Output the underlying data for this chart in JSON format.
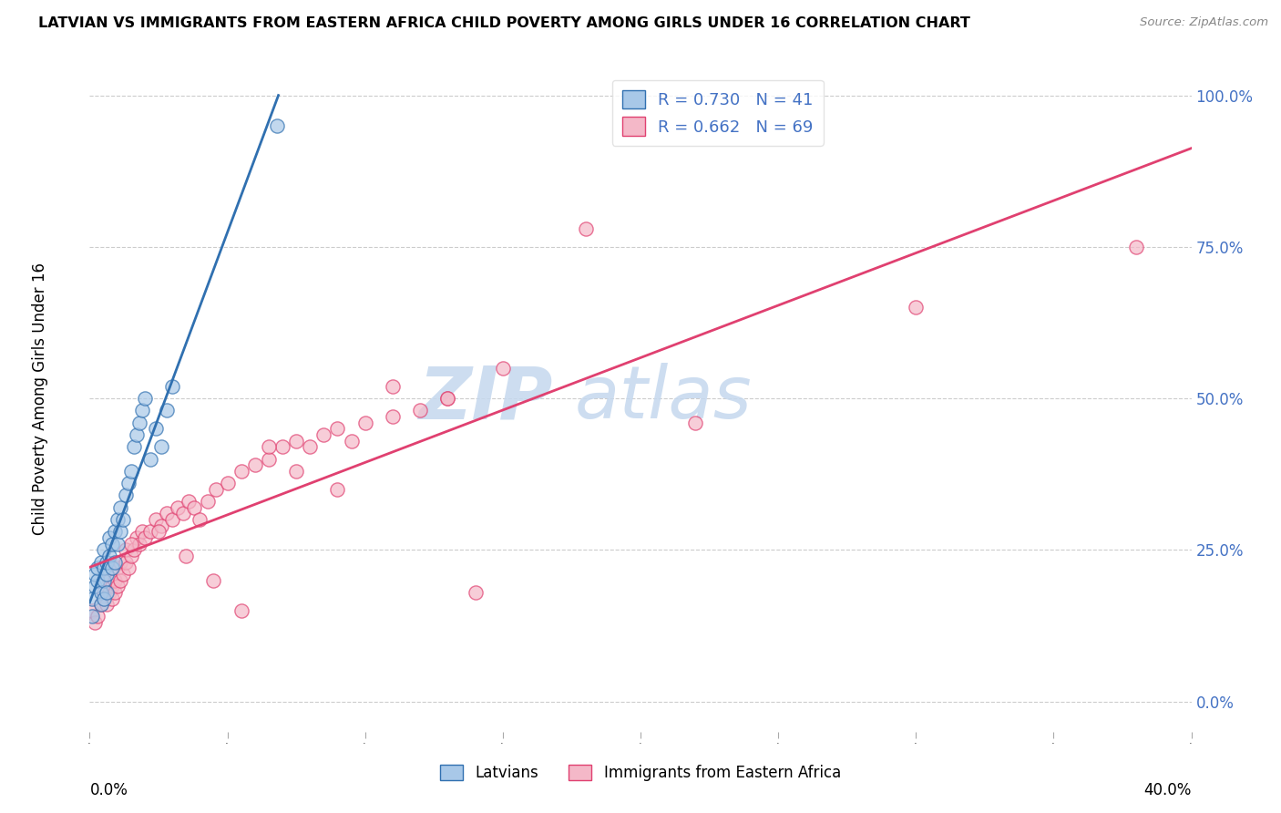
{
  "title": "LATVIAN VS IMMIGRANTS FROM EASTERN AFRICA CHILD POVERTY AMONG GIRLS UNDER 16 CORRELATION CHART",
  "source": "Source: ZipAtlas.com",
  "ylabel": "Child Poverty Among Girls Under 16",
  "legend_label1": "Latvians",
  "legend_label2": "Immigrants from Eastern Africa",
  "R1": 0.73,
  "N1": 41,
  "R2": 0.662,
  "N2": 69,
  "color1": "#a8c8e8",
  "color2": "#f4b8c8",
  "line_color1": "#3070b0",
  "line_color2": "#e04070",
  "watermark_zip": "ZIP",
  "watermark_atlas": "atlas",
  "xmin": 0.0,
  "xmax": 0.4,
  "ymin": -0.05,
  "ymax": 1.05,
  "ytick_vals": [
    0.0,
    0.25,
    0.5,
    0.75,
    1.0
  ],
  "ytick_labels": [
    "0.0%",
    "25.0%",
    "50.0%",
    "75.0%",
    "100.0%"
  ],
  "latvian_x": [
    0.001,
    0.001,
    0.002,
    0.002,
    0.003,
    0.003,
    0.004,
    0.004,
    0.004,
    0.005,
    0.005,
    0.005,
    0.005,
    0.006,
    0.006,
    0.006,
    0.007,
    0.007,
    0.008,
    0.008,
    0.009,
    0.009,
    0.01,
    0.01,
    0.011,
    0.011,
    0.012,
    0.013,
    0.014,
    0.015,
    0.016,
    0.017,
    0.018,
    0.019,
    0.02,
    0.022,
    0.024,
    0.026,
    0.028,
    0.03,
    0.068
  ],
  "latvian_y": [
    0.17,
    0.14,
    0.19,
    0.21,
    0.2,
    0.22,
    0.18,
    0.16,
    0.23,
    0.17,
    0.2,
    0.22,
    0.25,
    0.21,
    0.18,
    0.23,
    0.24,
    0.27,
    0.22,
    0.26,
    0.23,
    0.28,
    0.26,
    0.3,
    0.28,
    0.32,
    0.3,
    0.34,
    0.36,
    0.38,
    0.42,
    0.44,
    0.46,
    0.48,
    0.5,
    0.4,
    0.45,
    0.42,
    0.48,
    0.52,
    0.95
  ],
  "eastern_africa_x": [
    0.001,
    0.002,
    0.003,
    0.004,
    0.005,
    0.005,
    0.006,
    0.007,
    0.007,
    0.008,
    0.008,
    0.009,
    0.009,
    0.01,
    0.01,
    0.011,
    0.011,
    0.012,
    0.013,
    0.013,
    0.014,
    0.015,
    0.016,
    0.017,
    0.018,
    0.019,
    0.02,
    0.022,
    0.024,
    0.026,
    0.028,
    0.03,
    0.032,
    0.034,
    0.036,
    0.038,
    0.04,
    0.043,
    0.046,
    0.05,
    0.055,
    0.06,
    0.065,
    0.07,
    0.075,
    0.08,
    0.085,
    0.09,
    0.095,
    0.1,
    0.11,
    0.12,
    0.13,
    0.14,
    0.015,
    0.025,
    0.035,
    0.045,
    0.055,
    0.065,
    0.075,
    0.09,
    0.11,
    0.13,
    0.15,
    0.18,
    0.22,
    0.3,
    0.38
  ],
  "eastern_africa_y": [
    0.15,
    0.13,
    0.14,
    0.16,
    0.17,
    0.18,
    0.16,
    0.18,
    0.2,
    0.17,
    0.19,
    0.18,
    0.2,
    0.19,
    0.22,
    0.2,
    0.23,
    0.21,
    0.23,
    0.25,
    0.22,
    0.24,
    0.25,
    0.27,
    0.26,
    0.28,
    0.27,
    0.28,
    0.3,
    0.29,
    0.31,
    0.3,
    0.32,
    0.31,
    0.33,
    0.32,
    0.3,
    0.33,
    0.35,
    0.36,
    0.38,
    0.39,
    0.4,
    0.42,
    0.43,
    0.42,
    0.44,
    0.45,
    0.43,
    0.46,
    0.47,
    0.48,
    0.5,
    0.18,
    0.26,
    0.28,
    0.24,
    0.2,
    0.15,
    0.42,
    0.38,
    0.35,
    0.52,
    0.5,
    0.55,
    0.78,
    0.46,
    0.65,
    0.75
  ]
}
